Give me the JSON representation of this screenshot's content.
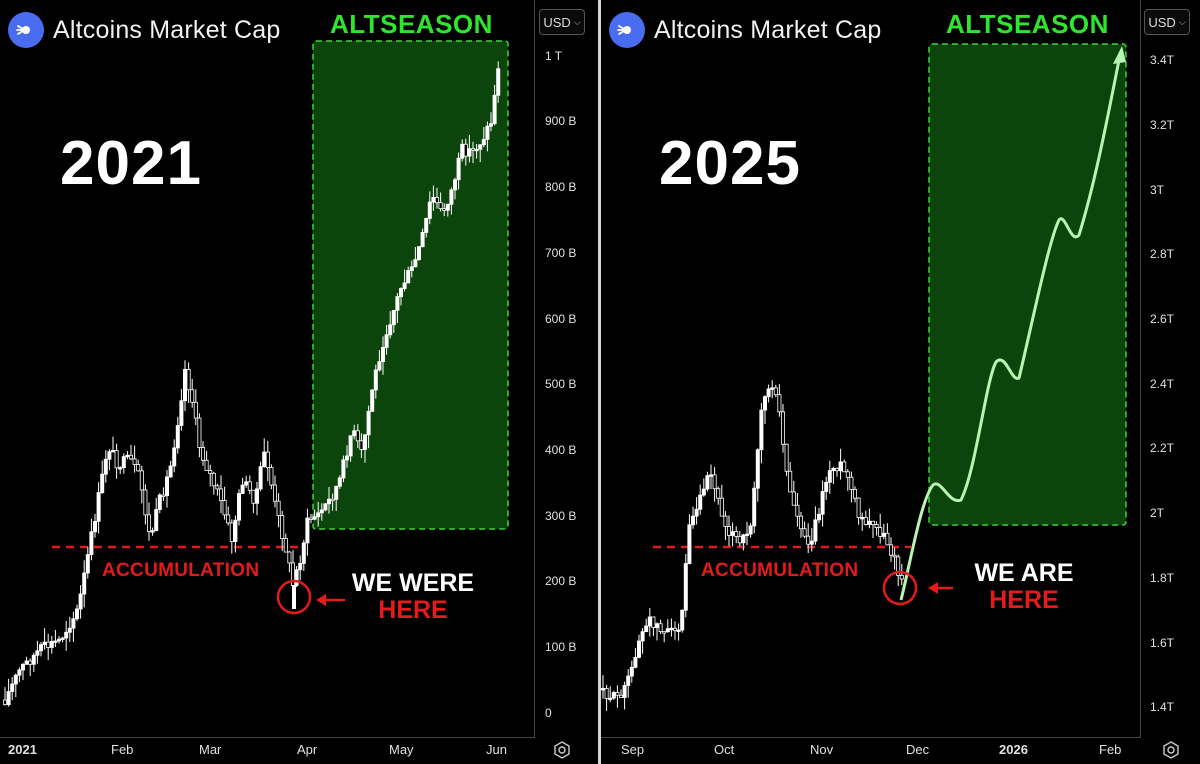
{
  "panels": [
    {
      "brand": "Altcoins Market Cap",
      "year_label": "2021",
      "zone_label": "ALTSEASON",
      "support_label": "ACCUMULATION",
      "callout_white": "WE WERE",
      "callout_red": "HERE",
      "currency": "USD",
      "y_ticks": [
        "1 T",
        "900 B",
        "800 B",
        "700 B",
        "600 B",
        "500 B",
        "400 B",
        "300 B",
        "200 B",
        "100 B",
        "0"
      ],
      "x_ticks": [
        "2021",
        "Feb",
        "Mar",
        "Apr",
        "May",
        "Jun"
      ]
    },
    {
      "brand": "Altcoins Market Cap",
      "year_label": "2025",
      "zone_label": "ALTSEASON",
      "support_label": "ACCUMULATION",
      "callout_white": "WE ARE",
      "callout_red": "HERE",
      "currency": "USD",
      "y_ticks": [
        "3.4T",
        "3.2T",
        "3T",
        "2.8T",
        "2.6T",
        "2.4T",
        "2.2T",
        "2T",
        "1.8T",
        "1.6T",
        "1.4T"
      ],
      "x_ticks": [
        "Sep",
        "Oct",
        "Nov",
        "Dec",
        "2026",
        "Feb"
      ]
    }
  ],
  "colors": {
    "altseason_text": "#2fe62f",
    "altseason_box": "#0d4d0d",
    "altseason_border": "#3ed43e",
    "accumulation": "#e21b1b",
    "candles": "#ffffff",
    "projection": "#b8f5b0",
    "brand_logo": "#4a6cf0"
  },
  "chart_data": [
    {
      "type": "candlestick",
      "title": "Altcoins Market Cap",
      "x": [
        "2021-01",
        "2021-01-15",
        "2021-02",
        "2021-02-15",
        "2021-03",
        "2021-03-15",
        "2021-04",
        "2021-04-15",
        "2021-05",
        "2021-05-15",
        "2021-06"
      ],
      "close_usd_billion": [
        50,
        125,
        380,
        400,
        420,
        370,
        210,
        370,
        610,
        870,
        960
      ],
      "ylim": [
        0,
        1000
      ],
      "support_level": 253,
      "altseason_zone": {
        "x_start": "2021-04",
        "x_end": "2021-06",
        "y_low": 280,
        "y_high": 1010
      },
      "marked_low": 185
    },
    {
      "type": "candlestick",
      "title": "Altcoins Market Cap",
      "x": [
        "Sep",
        "Sep-mid",
        "Oct",
        "Oct-mid",
        "Nov",
        "Nov-mid",
        "Dec",
        "Dec-mid",
        "2026",
        "2026-mid",
        "Feb"
      ],
      "close_usd_trillion": [
        1.5,
        1.65,
        2.1,
        2.05,
        2.4,
        2.15,
        1.95,
        1.8,
        2.4,
        2.85,
        3.4
      ],
      "ylim": [
        1.4,
        3.4
      ],
      "support_level": 1.9,
      "altseason_zone": {
        "x_start": "Dec",
        "x_end": "Feb",
        "y_low": 1.96,
        "y_high": 3.42
      },
      "marked_low": 1.76,
      "projection_points_usd_trillion": [
        1.76,
        2.1,
        2.05,
        2.45,
        2.42,
        2.9,
        2.88,
        3.42
      ]
    }
  ]
}
